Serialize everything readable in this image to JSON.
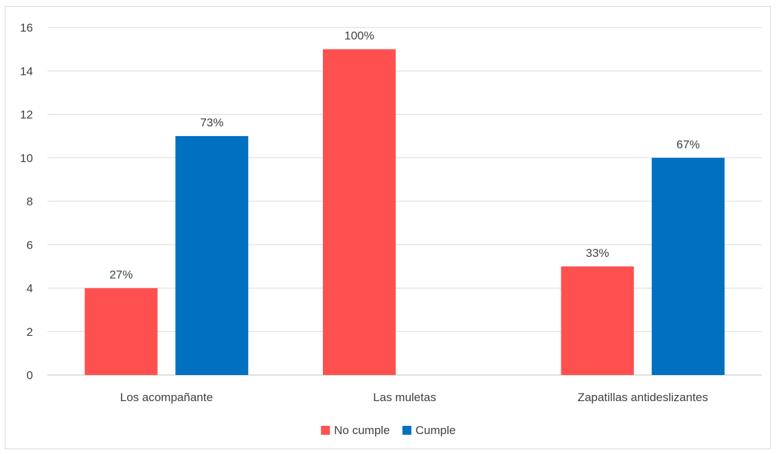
{
  "chart_data": {
    "type": "bar",
    "categories": [
      "Los acompañante",
      "Las muletas",
      "Zapatillas antideslizantes"
    ],
    "series": [
      {
        "name": "No cumple",
        "color": "#ff5050",
        "values": [
          4,
          15,
          5
        ],
        "labels": [
          "27%",
          "100%",
          "33%"
        ]
      },
      {
        "name": "Cumple",
        "color": "#0070c0",
        "values": [
          11,
          0,
          10
        ],
        "labels": [
          "73%",
          "",
          "67%"
        ]
      }
    ],
    "ylim": [
      0,
      16
    ],
    "yticks": [
      0,
      2,
      4,
      6,
      8,
      10,
      12,
      14,
      16
    ],
    "grid": true,
    "legend_position": "bottom"
  }
}
